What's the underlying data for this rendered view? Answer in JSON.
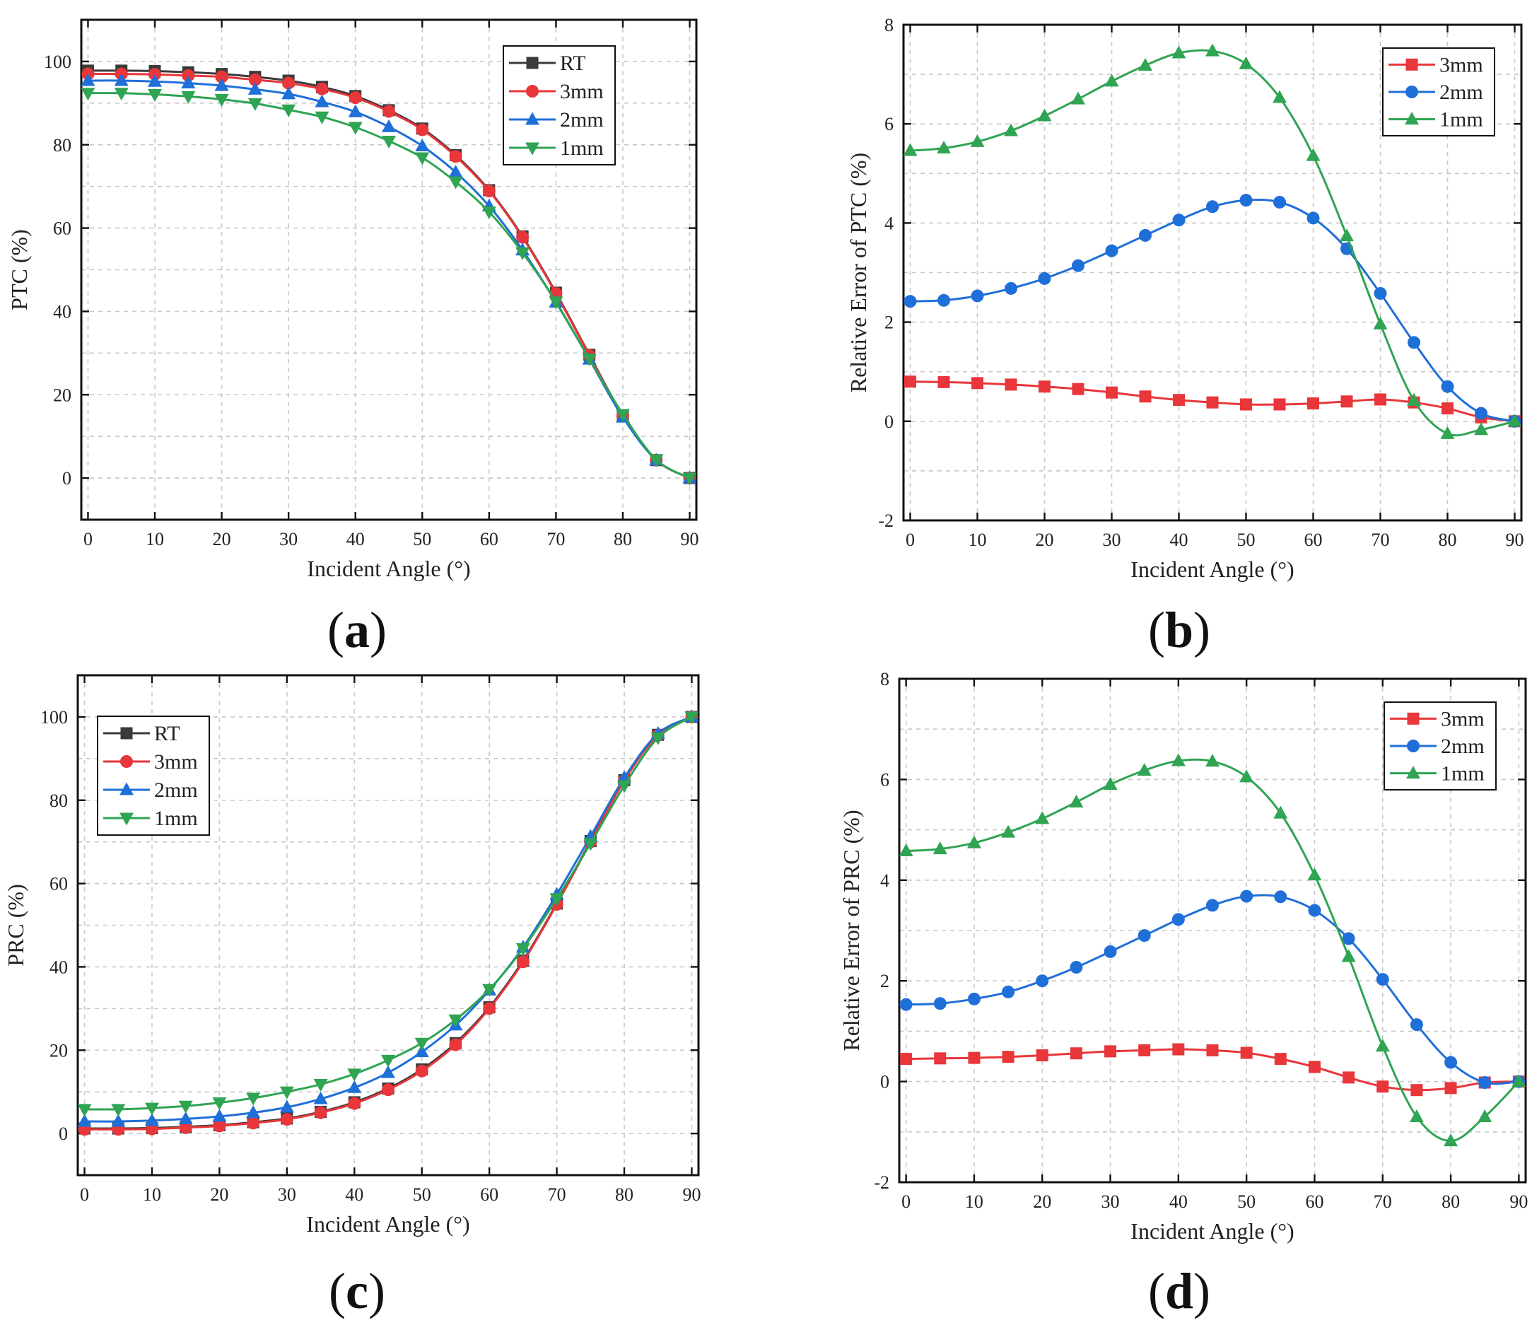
{
  "colors": {
    "RT": "#3a3a3a",
    "3mm": "#e8363a",
    "2mm": "#1f6fd8",
    "1mm": "#2fa452"
  },
  "chart_data": [
    {
      "panel": "a",
      "type": "line",
      "xlabel": "Incident Angle (°)",
      "ylabel": "PTC (%)",
      "xlim": [
        -1,
        91
      ],
      "ylim": [
        -10,
        110
      ],
      "xticks": [
        0,
        10,
        20,
        30,
        40,
        50,
        60,
        70,
        80,
        90
      ],
      "yticks": [
        0,
        20,
        40,
        60,
        80,
        100
      ],
      "grid": true,
      "legend": "top-right",
      "x": [
        0,
        5,
        10,
        15,
        20,
        25,
        30,
        35,
        40,
        45,
        50,
        55,
        60,
        65,
        70,
        75,
        80,
        85,
        90
      ],
      "series": [
        {
          "name": "RT",
          "marker": "square",
          "values": [
            97.8,
            97.8,
            97.7,
            97.4,
            97.0,
            96.3,
            95.4,
            93.9,
            91.7,
            88.3,
            83.9,
            77.5,
            69.1,
            58.0,
            44.5,
            29.6,
            15.0,
            4.3,
            0
          ]
        },
        {
          "name": "3mm",
          "marker": "circle",
          "values": [
            97.0,
            97.0,
            96.9,
            96.6,
            96.3,
            95.6,
            94.8,
            93.4,
            91.3,
            88.0,
            83.6,
            77.2,
            68.9,
            57.8,
            44.3,
            29.4,
            14.9,
            4.3,
            0
          ]
        },
        {
          "name": "2mm",
          "marker": "triangle-up",
          "values": [
            95.4,
            95.4,
            95.2,
            94.8,
            94.2,
            93.3,
            92.2,
            90.3,
            87.9,
            84.3,
            79.7,
            73.4,
            65.3,
            54.7,
            42.2,
            28.5,
            14.6,
            4.3,
            0
          ]
        },
        {
          "name": "1mm",
          "marker": "triangle-down",
          "values": [
            92.4,
            92.4,
            92.1,
            91.6,
            90.9,
            89.9,
            88.4,
            86.7,
            84.2,
            80.9,
            76.9,
            71.1,
            63.9,
            54.1,
            42.3,
            28.6,
            15.3,
            4.4,
            0
          ]
        }
      ]
    },
    {
      "panel": "b",
      "type": "line",
      "xlabel": "Incident Angle (°)",
      "ylabel": "Relative Error of PTC (%)",
      "xlim": [
        -1,
        91
      ],
      "ylim": [
        -2,
        8
      ],
      "xticks": [
        0,
        10,
        20,
        30,
        40,
        50,
        60,
        70,
        80,
        90
      ],
      "yticks": [
        -2,
        0,
        2,
        4,
        6,
        8
      ],
      "grid": true,
      "legend": "top-right",
      "x": [
        0,
        5,
        10,
        15,
        20,
        25,
        30,
        35,
        40,
        45,
        50,
        55,
        60,
        65,
        70,
        75,
        80,
        85,
        90
      ],
      "series": [
        {
          "name": "3mm",
          "marker": "square",
          "values": [
            0.8,
            0.79,
            0.77,
            0.74,
            0.7,
            0.65,
            0.58,
            0.5,
            0.43,
            0.38,
            0.34,
            0.34,
            0.36,
            0.4,
            0.44,
            0.38,
            0.26,
            0.08,
            0
          ]
        },
        {
          "name": "2mm",
          "marker": "circle",
          "values": [
            2.42,
            2.44,
            2.53,
            2.68,
            2.88,
            3.14,
            3.44,
            3.75,
            4.06,
            4.33,
            4.46,
            4.42,
            4.1,
            3.48,
            2.58,
            1.59,
            0.7,
            0.16,
            0
          ]
        },
        {
          "name": "1mm",
          "marker": "triangle-up",
          "values": [
            5.46,
            5.51,
            5.64,
            5.86,
            6.16,
            6.5,
            6.86,
            7.18,
            7.43,
            7.47,
            7.21,
            6.53,
            5.36,
            3.74,
            1.96,
            0.42,
            -0.25,
            -0.17,
            0
          ]
        }
      ]
    },
    {
      "panel": "c",
      "type": "line",
      "xlabel": "Incident Angle (°)",
      "ylabel": "PRC (%)",
      "xlim": [
        -1,
        91
      ],
      "ylim": [
        -10,
        110
      ],
      "xticks": [
        0,
        10,
        20,
        30,
        40,
        50,
        60,
        70,
        80,
        90
      ],
      "yticks": [
        0,
        20,
        40,
        60,
        80,
        100
      ],
      "grid": true,
      "legend": "top-left",
      "x": [
        0,
        5,
        10,
        15,
        20,
        25,
        30,
        35,
        40,
        45,
        50,
        55,
        60,
        65,
        70,
        75,
        80,
        85,
        90
      ],
      "series": [
        {
          "name": "RT",
          "marker": "square",
          "values": [
            1.2,
            1.2,
            1.3,
            1.6,
            2.0,
            2.7,
            3.6,
            5.2,
            7.5,
            10.8,
            15.4,
            21.7,
            30.3,
            41.5,
            55.2,
            70.2,
            84.8,
            95.7,
            100
          ]
        },
        {
          "name": "3mm",
          "marker": "circle",
          "values": [
            1.0,
            1.0,
            1.1,
            1.4,
            1.8,
            2.5,
            3.4,
            5.0,
            7.2,
            10.5,
            15.0,
            21.3,
            30.0,
            41.2,
            55.0,
            70.0,
            84.7,
            95.6,
            100
          ]
        },
        {
          "name": "2mm",
          "marker": "triangle-up",
          "values": [
            2.9,
            2.9,
            3.1,
            3.5,
            4.1,
            5.0,
            6.3,
            8.3,
            11.0,
            14.6,
            19.6,
            26.0,
            34.4,
            44.7,
            57.4,
            71.3,
            85.4,
            96.0,
            100
          ]
        },
        {
          "name": "1mm",
          "marker": "triangle-down",
          "values": [
            5.8,
            5.8,
            6.1,
            6.6,
            7.4,
            8.5,
            10.0,
            11.8,
            14.3,
            17.6,
            21.7,
            27.3,
            34.6,
            44.4,
            56.4,
            69.6,
            83.5,
            95.0,
            100
          ]
        }
      ]
    },
    {
      "panel": "d",
      "type": "line",
      "xlabel": "Incident Angle (°)",
      "ylabel": "Relative Error of PRC (%)",
      "xlim": [
        -1,
        91
      ],
      "ylim": [
        -2,
        8
      ],
      "xticks": [
        0,
        10,
        20,
        30,
        40,
        50,
        60,
        70,
        80,
        90
      ],
      "yticks": [
        -2,
        0,
        2,
        4,
        6,
        8
      ],
      "grid": true,
      "legend": "top-right",
      "x": [
        0,
        5,
        10,
        15,
        20,
        25,
        30,
        35,
        40,
        45,
        50,
        55,
        60,
        65,
        70,
        75,
        80,
        85,
        90
      ],
      "series": [
        {
          "name": "3mm",
          "marker": "square",
          "values": [
            0.45,
            0.46,
            0.47,
            0.49,
            0.52,
            0.56,
            0.6,
            0.62,
            0.64,
            0.62,
            0.57,
            0.45,
            0.29,
            0.08,
            -0.1,
            -0.17,
            -0.13,
            -0.02,
            0
          ]
        },
        {
          "name": "2mm",
          "marker": "circle",
          "values": [
            1.53,
            1.55,
            1.64,
            1.78,
            2.0,
            2.27,
            2.58,
            2.9,
            3.22,
            3.5,
            3.68,
            3.67,
            3.4,
            2.84,
            2.03,
            1.13,
            0.38,
            -0.02,
            0
          ]
        },
        {
          "name": "1mm",
          "marker": "triangle-up",
          "values": [
            4.58,
            4.62,
            4.74,
            4.95,
            5.22,
            5.55,
            5.9,
            6.18,
            6.37,
            6.36,
            6.05,
            5.33,
            4.1,
            2.48,
            0.7,
            -0.7,
            -1.18,
            -0.7,
            0
          ]
        }
      ]
    }
  ]
}
